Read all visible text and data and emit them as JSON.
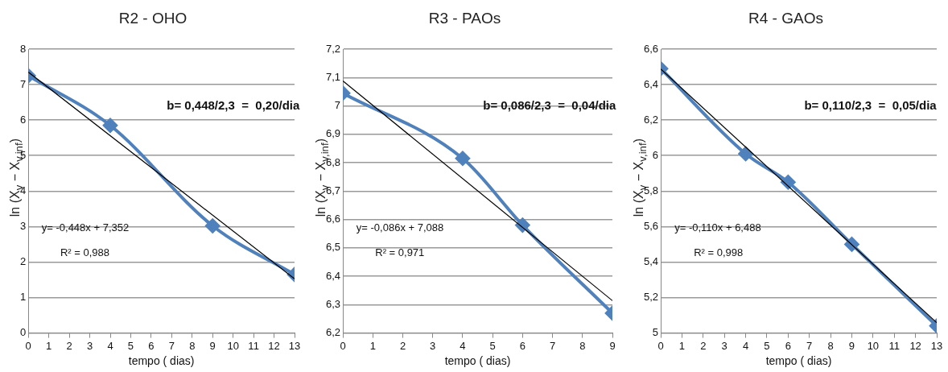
{
  "chart_data": [
    {
      "type": "line",
      "title": "R2 - OHO",
      "xlabel": "tempo ( dias)",
      "ylabel": "ln (X$_{v}$ − X$_{v,inf}$)",
      "xlim": [
        0,
        13
      ],
      "xticks": [
        0,
        1,
        2,
        3,
        4,
        5,
        6,
        7,
        8,
        9,
        10,
        11,
        12,
        13
      ],
      "ylim": [
        0,
        8
      ],
      "yticks": [
        0,
        1,
        2,
        3,
        4,
        5,
        6,
        7,
        8
      ],
      "grid": "y",
      "marker": "diamond",
      "line_style": "solid",
      "series": [
        {
          "color": "#4f81bd",
          "x": [
            0,
            4,
            9,
            13
          ],
          "values": [
            7.25,
            5.85,
            3.02,
            1.65
          ]
        },
        {
          "color": "#000000",
          "marker": "none",
          "x": [
            0,
            13
          ],
          "values": [
            7.352,
            1.528
          ]
        }
      ],
      "annotations": [
        "b= 0,448/2,3  =  0,20/dia",
        "y= -0,448x + 7,352",
        "R² = 0,988"
      ]
    },
    {
      "type": "line",
      "title": "R3 -  PAOs",
      "xlabel": "tempo ( dias)",
      "ylabel": "ln (X$_{v}$ − X$_{v,inf}$)",
      "xlim": [
        0,
        9
      ],
      "xticks": [
        0,
        1,
        2,
        3,
        4,
        5,
        6,
        7,
        8,
        9
      ],
      "ylim": [
        6.2,
        7.2
      ],
      "yticks": [
        {
          "value": 6.2,
          "label": "6,2"
        },
        {
          "value": 6.3,
          "label": "6,3"
        },
        {
          "value": 6.4,
          "label": "6,4"
        },
        {
          "value": 6.5,
          "label": "6,5"
        },
        {
          "value": 6.6,
          "label": "6,6"
        },
        {
          "value": 6.7,
          "label": "6,7"
        },
        {
          "value": 6.8,
          "label": "6,8"
        },
        {
          "value": 6.9,
          "label": "6,9"
        },
        7,
        {
          "value": 7.1,
          "label": "7,1"
        },
        {
          "value": 7.2,
          "label": "7,2"
        }
      ],
      "grid": "y",
      "marker": "diamond",
      "line_style": "solid",
      "series": [
        {
          "color": "#4f81bd",
          "x": [
            0,
            4,
            6,
            9
          ],
          "values": [
            7.045,
            6.815,
            6.58,
            6.27
          ]
        },
        {
          "color": "#000000",
          "marker": "none",
          "x": [
            0,
            9
          ],
          "values": [
            7.088,
            6.314
          ]
        }
      ],
      "annotations": [
        "b= 0,086/2,3  =  0,04/dia",
        "y= -0,086x + 7,088",
        "R² = 0,971"
      ]
    },
    {
      "type": "line",
      "title": "R4 - GAOs",
      "xlabel": "tempo ( dias)",
      "ylabel": "ln (X$_{v}$ − X$_{v,inf}$)",
      "xlim": [
        0,
        13
      ],
      "xticks": [
        0,
        1,
        2,
        3,
        4,
        5,
        6,
        7,
        8,
        9,
        10,
        11,
        12,
        13
      ],
      "ylim": [
        5,
        6.6
      ],
      "yticks": [
        5,
        {
          "value": 5.2,
          "label": "5,2"
        },
        {
          "value": 5.4,
          "label": "5,4"
        },
        {
          "value": 5.6,
          "label": "5,6"
        },
        {
          "value": 5.8,
          "label": "5,8"
        },
        6,
        {
          "value": 6.2,
          "label": "6,2"
        },
        {
          "value": 6.4,
          "label": "6,4"
        },
        {
          "value": 6.6,
          "label": "6,6"
        }
      ],
      "grid": "y",
      "marker": "diamond",
      "line_style": "solid",
      "series": [
        {
          "color": "#4f81bd",
          "x": [
            0,
            4,
            6,
            9,
            13
          ],
          "values": [
            6.49,
            6.01,
            5.85,
            5.5,
            5.04
          ]
        },
        {
          "color": "#000000",
          "marker": "none",
          "x": [
            0,
            13
          ],
          "values": [
            6.488,
            5.058
          ]
        }
      ],
      "annotations": [
        "b= 0,110/2,3  =  0,05/dia",
        "y= -0,110x + 6,488",
        "R² = 0,998"
      ]
    }
  ]
}
